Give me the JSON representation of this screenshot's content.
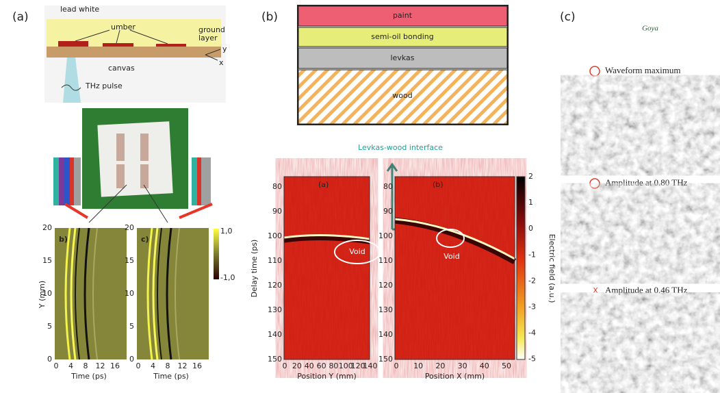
{
  "panel_a": {
    "label": "(a)",
    "schematic": {
      "lead_white": "lead white",
      "umber": "umber",
      "canvas": "canvas",
      "ground": "ground",
      "layer": "layer",
      "pulse": "THz pulse",
      "axis_y": "y",
      "axis_x": "x"
    },
    "scans": [
      {
        "label": "b)"
      },
      {
        "label": "c)"
      }
    ],
    "y_axis": {
      "title": "Y (mm)",
      "ticks": [
        "0",
        "5",
        "10",
        "15",
        "20"
      ]
    },
    "x_axis": {
      "title": "Time (ps)",
      "ticks": [
        "0",
        "4",
        "8",
        "12",
        "16"
      ]
    },
    "colorbar": [
      "1,0",
      "-1,0"
    ]
  },
  "panel_b": {
    "label": "(b)",
    "layers": [
      "paint",
      "semi-oil bonding",
      "levkas",
      "wood"
    ],
    "interface": "Levkas-wood interface",
    "y_title": "Delay time (ps)",
    "y_ticks": [
      "80",
      "90",
      "100",
      "110",
      "120",
      "130",
      "140",
      "150"
    ],
    "plots": [
      {
        "label": "(a)",
        "x_title": "Position Y (mm)",
        "x_ticks": [
          "0",
          "20",
          "40",
          "60",
          "80",
          "100",
          "120",
          "140"
        ],
        "void": "Void"
      },
      {
        "label": "(b)",
        "x_title": "Position X (mm)",
        "x_ticks": [
          "0",
          "10",
          "20",
          "30",
          "40",
          "50"
        ],
        "void": "Void"
      }
    ],
    "colorbar": {
      "title": "Electric field (a.u.)",
      "ticks": [
        "2",
        "1",
        "0",
        "-1",
        "-2",
        "-3",
        "-4",
        "-5"
      ]
    }
  },
  "panel_c": {
    "label": "(c)",
    "signature": "Goya",
    "maps": [
      {
        "title": "Waveform maximum"
      },
      {
        "title": "Amplitude at 0.80 THz"
      },
      {
        "marker": "X",
        "title": "Amplitude at 0.46 THz"
      }
    ]
  }
}
